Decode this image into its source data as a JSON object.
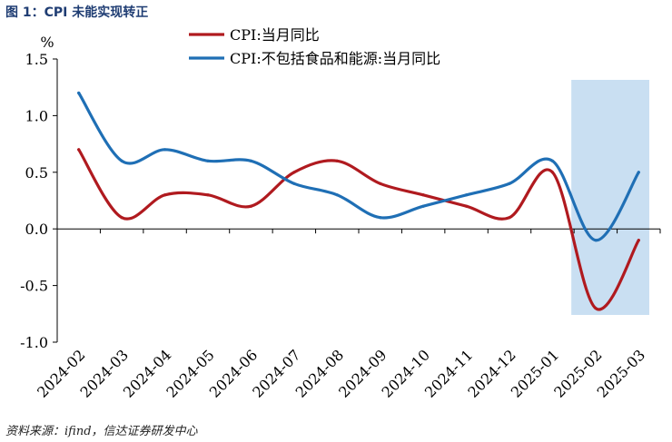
{
  "header": {
    "title": "图 1：CPI 未能实现转正"
  },
  "footer": {
    "source": "资料来源：ifind，信达证券研发中心"
  },
  "chart_data": {
    "type": "line",
    "ylabel": "%",
    "ylim": [
      -1.0,
      1.5
    ],
    "yticks": [
      "1.5",
      "1.0",
      "0.5",
      "0.0",
      "-0.5",
      "-1.0"
    ],
    "ytick_values": [
      1.5,
      1.0,
      0.5,
      0.0,
      -0.5,
      -1.0
    ],
    "categories": [
      "2024-02",
      "2024-03",
      "2024-04",
      "2024-05",
      "2024-06",
      "2024-07",
      "2024-08",
      "2024-09",
      "2024-10",
      "2024-11",
      "2024-12",
      "2025-01",
      "2025-02",
      "2025-03"
    ],
    "legend_position": "top",
    "highlight_categories": [
      "2025-02",
      "2025-03"
    ],
    "highlight_color": "#c9dff2",
    "series": [
      {
        "name": "CPI:当月同比",
        "color": "#b01a1f",
        "values": [
          0.7,
          0.1,
          0.3,
          0.3,
          0.2,
          0.5,
          0.6,
          0.4,
          0.3,
          0.2,
          0.1,
          0.5,
          -0.7,
          -0.1
        ]
      },
      {
        "name": "CPI:不包括食品和能源:当月同比",
        "color": "#1f6fb5",
        "values": [
          1.2,
          0.6,
          0.7,
          0.6,
          0.6,
          0.4,
          0.3,
          0.1,
          0.2,
          0.3,
          0.4,
          0.6,
          -0.1,
          0.5
        ]
      }
    ]
  }
}
